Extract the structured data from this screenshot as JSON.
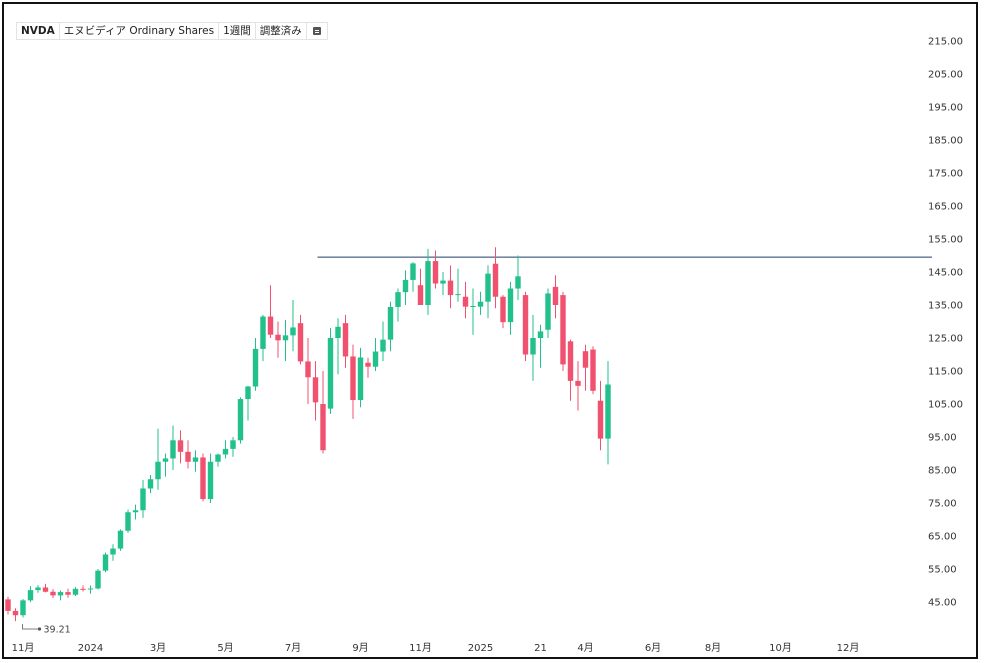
{
  "header": {
    "symbol": "NVDA",
    "name": "エヌビディア Ordinary Shares",
    "interval": "1週間",
    "adjustment": "調整済み",
    "menu_icon": "list-icon"
  },
  "colors": {
    "up": "#22c08a",
    "down": "#f0516e",
    "level_line": "#1f3f66",
    "axis_text": "#333333"
  },
  "annotation": {
    "low_label": "39.21"
  },
  "chart_data": {
    "type": "candlestick",
    "title": "",
    "xlabel": "",
    "ylabel": "",
    "ylim": [
      38,
      220
    ],
    "y_ticks": [
      45,
      55,
      65,
      75,
      85,
      95,
      105,
      115,
      125,
      135,
      145,
      155,
      165,
      175,
      185,
      195,
      205,
      215
    ],
    "y_tick_labels": [
      "45.00",
      "55.00",
      "65.00",
      "75.00",
      "85.00",
      "95.00",
      "105.00",
      "115.00",
      "125.00",
      "135.00",
      "145.00",
      "155.00",
      "165.00",
      "175.00",
      "185.00",
      "195.00",
      "205.00",
      "215.00"
    ],
    "x_ticks": [
      {
        "label": "11月",
        "i": 2
      },
      {
        "label": "2024",
        "i": 11
      },
      {
        "label": "3月",
        "i": 20
      },
      {
        "label": "5月",
        "i": 29
      },
      {
        "label": "7月",
        "i": 38
      },
      {
        "label": "9月",
        "i": 47
      },
      {
        "label": "11月",
        "i": 55
      },
      {
        "label": "2025",
        "i": 63
      },
      {
        "label": "21",
        "i": 71
      },
      {
        "label": "4月",
        "i": 77
      },
      {
        "label": "6月",
        "i": 86
      },
      {
        "label": "8月",
        "i": 94
      },
      {
        "label": "10月",
        "i": 103
      },
      {
        "label": "12月",
        "i": 112
      }
    ],
    "horizontal_line": 149.5,
    "horizontal_line_start_i": 41,
    "candles": [
      [
        45.8,
        46.6,
        41.2,
        42.3
      ],
      [
        42.3,
        43.1,
        39.2,
        41.0
      ],
      [
        41.0,
        45.9,
        40.3,
        45.5
      ],
      [
        45.5,
        49.8,
        45.0,
        48.6
      ],
      [
        48.6,
        50.1,
        47.8,
        49.4
      ],
      [
        49.4,
        50.5,
        47.9,
        48.1
      ],
      [
        48.1,
        48.9,
        46.2,
        47.0
      ],
      [
        47.0,
        48.5,
        45.5,
        48.0
      ],
      [
        48.0,
        49.0,
        46.3,
        47.2
      ],
      [
        47.2,
        49.5,
        46.8,
        49.0
      ],
      [
        49.0,
        50.0,
        48.2,
        48.9
      ],
      [
        48.9,
        50.0,
        47.5,
        49.1
      ],
      [
        49.1,
        55.0,
        48.8,
        54.5
      ],
      [
        54.5,
        60.0,
        54.0,
        59.4
      ],
      [
        59.4,
        62.5,
        57.5,
        61.2
      ],
      [
        61.2,
        67.0,
        60.5,
        66.6
      ],
      [
        66.6,
        73.0,
        66.0,
        72.2
      ],
      [
        72.2,
        74.5,
        70.0,
        72.8
      ],
      [
        72.8,
        82.0,
        70.5,
        79.4
      ],
      [
        79.4,
        83.5,
        78.0,
        82.2
      ],
      [
        82.2,
        97.5,
        79.0,
        87.5
      ],
      [
        87.5,
        90.0,
        83.0,
        88.5
      ],
      [
        88.5,
        98.5,
        85.0,
        94.0
      ],
      [
        94.0,
        97.0,
        87.0,
        90.5
      ],
      [
        90.5,
        94.0,
        85.5,
        87.5
      ],
      [
        87.5,
        91.0,
        84.5,
        88.8
      ],
      [
        88.8,
        90.0,
        75.5,
        76.2
      ],
      [
        76.2,
        90.0,
        75.0,
        87.5
      ],
      [
        87.5,
        90.0,
        86.0,
        89.7
      ],
      [
        89.7,
        94.0,
        88.5,
        91.4
      ],
      [
        91.4,
        95.0,
        89.0,
        94.0
      ],
      [
        94.0,
        107.0,
        93.0,
        106.5
      ],
      [
        106.5,
        110.5,
        100.0,
        110.3
      ],
      [
        110.3,
        125.0,
        109.0,
        121.7
      ],
      [
        121.7,
        132.0,
        118.0,
        131.5
      ],
      [
        131.5,
        141.0,
        125.0,
        126.0
      ],
      [
        126.0,
        130.0,
        119.0,
        124.3
      ],
      [
        124.3,
        130.5,
        118.0,
        125.8
      ],
      [
        125.8,
        136.5,
        121.0,
        128.2
      ],
      [
        129.5,
        132.0,
        117.0,
        117.9
      ],
      [
        117.9,
        125.0,
        105.0,
        113.1
      ],
      [
        113.1,
        118.0,
        100.0,
        105.5
      ],
      [
        105.0,
        115.0,
        90.0,
        91.0
      ],
      [
        103.6,
        128.0,
        102.0,
        125.0
      ],
      [
        125.0,
        131.0,
        114.0,
        128.4
      ],
      [
        129.5,
        132.0,
        116.0,
        119.4
      ],
      [
        119.4,
        123.0,
        100.5,
        106.2
      ],
      [
        106.2,
        122.0,
        104.0,
        119.1
      ],
      [
        117.5,
        119.0,
        113.0,
        116.3
      ],
      [
        116.3,
        125.0,
        115.0,
        120.9
      ],
      [
        120.9,
        130.0,
        118.0,
        124.5
      ],
      [
        124.5,
        136.0,
        121.0,
        134.4
      ],
      [
        134.4,
        140.0,
        130.0,
        138.9
      ],
      [
        138.9,
        145.5,
        135.0,
        142.6
      ],
      [
        142.6,
        148.0,
        139.0,
        147.6
      ],
      [
        141.0,
        146.0,
        135.0,
        135.0
      ],
      [
        135.0,
        152.0,
        132.0,
        148.3
      ],
      [
        148.3,
        151.5,
        140.0,
        141.5
      ],
      [
        141.5,
        145.0,
        138.0,
        142.4
      ],
      [
        142.4,
        147.0,
        134.0,
        138.0
      ],
      [
        138.0,
        146.0,
        136.0,
        138.3
      ],
      [
        137.5,
        142.0,
        131.0,
        134.5
      ],
      [
        134.5,
        140.0,
        126.0,
        134.7
      ],
      [
        134.5,
        139.0,
        132.0,
        136.0
      ],
      [
        136.0,
        147.0,
        131.0,
        144.5
      ],
      [
        147.5,
        152.5,
        134.0,
        137.5
      ],
      [
        137.5,
        138.0,
        128.0,
        129.8
      ],
      [
        129.8,
        142.0,
        126.0,
        140.0
      ],
      [
        140.0,
        150.0,
        136.5,
        143.7
      ],
      [
        138.0,
        139.0,
        118.0,
        120.0
      ],
      [
        120.0,
        132.0,
        112.0,
        125.0
      ],
      [
        125.0,
        129.0,
        116.0,
        127.0
      ],
      [
        127.5,
        140.0,
        125.0,
        138.5
      ],
      [
        140.5,
        144.0,
        131.0,
        135.0
      ],
      [
        138.0,
        139.0,
        115.0,
        117.0
      ],
      [
        124.0,
        124.5,
        106.0,
        112.0
      ],
      [
        112.0,
        118.0,
        103.0,
        110.5
      ],
      [
        121.0,
        123.0,
        109.0,
        116.0
      ],
      [
        121.5,
        122.5,
        108.0,
        109.0
      ],
      [
        106.0,
        112.0,
        91.0,
        94.5
      ],
      [
        94.5,
        118.0,
        86.7,
        110.9
      ]
    ]
  }
}
